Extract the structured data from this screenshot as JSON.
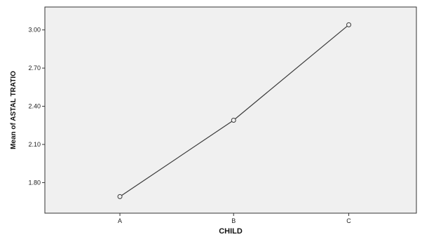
{
  "chart_data": {
    "type": "line",
    "title": "",
    "xlabel": "CHILD",
    "ylabel": "Mean of ASTAL TRATIO",
    "categories": [
      "A",
      "B",
      "C"
    ],
    "series": [
      {
        "values": [
          1.69,
          2.29,
          3.04
        ]
      }
    ],
    "ylim": [
      1.56,
      3.18
    ],
    "yticks": [
      1.8,
      2.1,
      2.4,
      2.7,
      3.0
    ],
    "ytick_labels": [
      "1.80",
      "2.10",
      "2.40",
      "2.70",
      "3.00"
    ],
    "grid": false,
    "legend": "none",
    "colors": {
      "plot_background": "#f0f0f0",
      "line": "#3a3a3a",
      "marker_fill": "#f0f0f0",
      "axis": "#333333"
    }
  }
}
